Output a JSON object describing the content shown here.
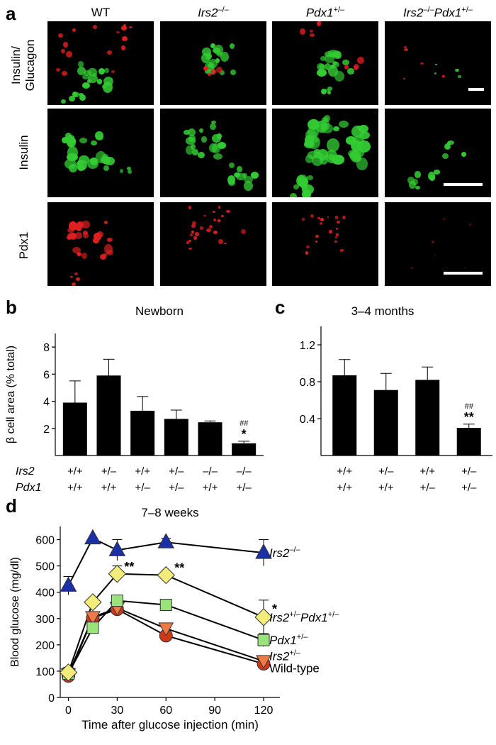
{
  "panel_a": {
    "letter": "a",
    "columns": [
      {
        "text": "WT",
        "sup": ""
      },
      {
        "text": "Irs2",
        "sup": "–/–"
      },
      {
        "text": "Pdx1",
        "sup": "+/–"
      },
      {
        "text": "Irs2",
        "sup": "–/–",
        "text2": "Pdx1",
        "sup2": "+/–"
      }
    ],
    "rows": [
      {
        "line1": "Insulin/",
        "line2": "Glucagon"
      },
      {
        "line1": "Insulin",
        "line2": ""
      },
      {
        "line1": "Pdx1",
        "line2": ""
      }
    ],
    "colors": {
      "insulin": "#33cc33",
      "glucagon": "#e02020",
      "pdx1": "#e02020",
      "background": "#000000"
    }
  },
  "chart_data": [
    {
      "panel": "b",
      "type": "bar",
      "title": "Newborn",
      "ylabel": "β cell area (% total)",
      "ylim": [
        0,
        9
      ],
      "yticks": [
        2,
        4,
        6,
        8
      ],
      "row_labels": [
        "Irs2",
        "Pdx1"
      ],
      "categories": [
        [
          "+/+",
          "+/+"
        ],
        [
          "+/–",
          "+/+"
        ],
        [
          "+/+",
          "+/–"
        ],
        [
          "+/–",
          "+/–"
        ],
        [
          "–/–",
          "+/+"
        ],
        [
          "–/–",
          "+/–"
        ]
      ],
      "values": [
        3.9,
        5.9,
        3.3,
        2.7,
        2.45,
        0.9
      ],
      "errors": [
        1.6,
        1.2,
        1.05,
        0.65,
        0.1,
        0.15
      ],
      "annotations": [
        {
          "bar": 5,
          "line1": "##",
          "line2": "*"
        }
      ],
      "bar_color": "#000000"
    },
    {
      "panel": "c",
      "type": "bar",
      "title": "3–4 months",
      "ylabel": "",
      "ylim": [
        0,
        1.4
      ],
      "yticks": [
        0.4,
        0.8,
        1.2
      ],
      "categories": [
        [
          "+/+",
          "+/+"
        ],
        [
          "+/–",
          "+/+"
        ],
        [
          "+/+",
          "+/–"
        ],
        [
          "+/–",
          "+/–"
        ]
      ],
      "values": [
        0.87,
        0.71,
        0.82,
        0.3
      ],
      "errors": [
        0.17,
        0.18,
        0.14,
        0.04
      ],
      "annotations": [
        {
          "bar": 3,
          "line1": "##",
          "line2": "**"
        }
      ],
      "bar_color": "#000000"
    },
    {
      "panel": "d",
      "type": "line",
      "title": "7–8 weeks",
      "xlabel": "Time after glucose injection (min)",
      "ylabel": "Blood glucose (mg/dl)",
      "xlim": [
        -5,
        130
      ],
      "ylim": [
        0,
        650
      ],
      "xticks": [
        0,
        30,
        60,
        90,
        120
      ],
      "yticks": [
        0,
        100,
        200,
        300,
        400,
        500,
        600
      ],
      "x": [
        0,
        15,
        30,
        60,
        120
      ],
      "series": [
        {
          "name": "Irs2",
          "sup": "–/–",
          "values": [
            425,
            605,
            560,
            590,
            550
          ],
          "errors": [
            35,
            0,
            40,
            15,
            50
          ],
          "marker": "triangle-up",
          "color": "#1a2fa8"
        },
        {
          "name": "Irs2",
          "sup": "+/–",
          "name2": "Pdx1",
          "sup2": "+/–",
          "values": [
            95,
            362,
            470,
            465,
            305
          ],
          "errors": [
            20,
            0,
            30,
            0,
            65
          ],
          "marker": "diamond",
          "color": "#f2ec7a"
        },
        {
          "name": "Pdx1",
          "sup": "+/–",
          "values": [
            90,
            265,
            368,
            352,
            218
          ],
          "errors": [
            0,
            0,
            0,
            0,
            25
          ],
          "marker": "square",
          "color": "#9ae27a"
        },
        {
          "name": "Irs2",
          "sup": "+/–",
          "values": [
            88,
            305,
            340,
            262,
            138
          ],
          "errors": [
            0,
            0,
            0,
            0,
            0
          ],
          "marker": "triangle-down",
          "color": "#f07a45"
        },
        {
          "name": "Wild-type",
          "sup": "",
          "values": [
            82,
            302,
            335,
            235,
            128
          ],
          "errors": [
            0,
            0,
            0,
            0,
            0
          ],
          "marker": "circle",
          "color": "#d0381a"
        }
      ],
      "annotations": [
        {
          "x": 30,
          "text": "**"
        },
        {
          "x": 60,
          "text": "**"
        },
        {
          "x": 120,
          "text": "*"
        }
      ]
    }
  ]
}
